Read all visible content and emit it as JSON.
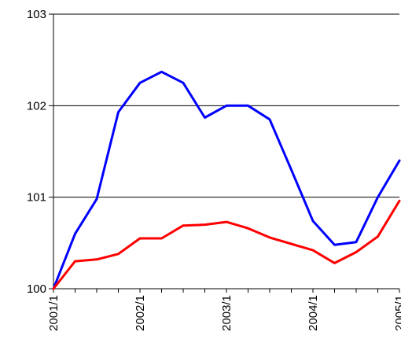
{
  "chart_data": {
    "type": "line",
    "title": "",
    "xlabel": "",
    "ylabel": "",
    "ylim": [
      100,
      103
    ],
    "yticks": [
      100,
      101,
      102,
      103
    ],
    "grid": true,
    "legend": "none",
    "x_tick_labels": [
      "2001/1",
      "2002/1",
      "2003/1",
      "2004/1",
      "2005/1"
    ],
    "x_tick_positions": [
      0,
      4,
      8,
      12,
      16
    ],
    "x": [
      0,
      1,
      2,
      3,
      4,
      5,
      6,
      7,
      8,
      9,
      10,
      11,
      12,
      13,
      14,
      15,
      16
    ],
    "series": [
      {
        "color": "#0000ff",
        "values": [
          100.0,
          100.6,
          100.98,
          101.93,
          102.25,
          102.37,
          102.25,
          101.87,
          102.0,
          102.0,
          101.85,
          101.3,
          100.74,
          100.48,
          100.51,
          101.0,
          101.4
        ]
      },
      {
        "color": "#ff0000",
        "values": [
          100.0,
          100.3,
          100.32,
          100.38,
          100.55,
          100.55,
          100.69,
          100.7,
          100.73,
          100.66,
          100.56,
          100.49,
          100.42,
          100.28,
          100.4,
          100.57,
          100.96
        ]
      }
    ]
  }
}
